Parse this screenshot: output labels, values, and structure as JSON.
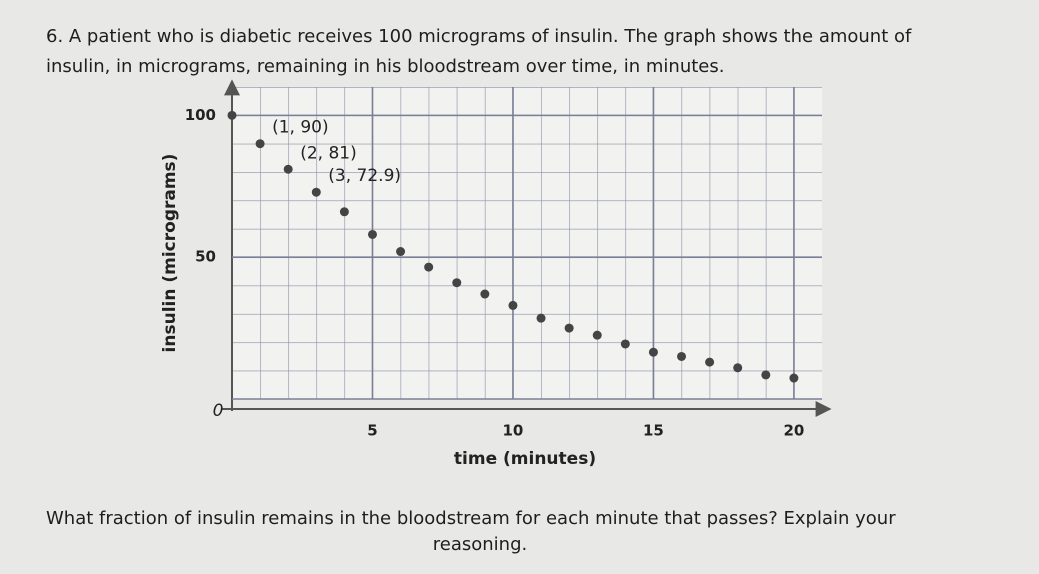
{
  "question": [
    "6. A patient who is diabetic receives 100 micrograms of insulin. The graph shows the amount of",
    "insulin, in micrograms, remaining in his bloodstream over time, in minutes."
  ],
  "chart_data": {
    "type": "scatter",
    "xlabel": "time (minutes)",
    "ylabel": "insulin (micrograms)",
    "x": [
      0,
      1,
      2,
      3,
      4,
      5,
      6,
      7,
      8,
      9,
      10,
      11,
      12,
      13,
      14,
      15,
      16,
      17,
      18,
      19,
      20
    ],
    "y": [
      100,
      90,
      81,
      72.9,
      66,
      58,
      52,
      46.5,
      41,
      37,
      33,
      28.5,
      25,
      22.5,
      19.4,
      16.5,
      15,
      13,
      11,
      8.5,
      7.4
    ],
    "color": "#444444",
    "xlim": [
      0,
      21
    ],
    "ylim": [
      0,
      110
    ],
    "xticks": [
      5,
      10,
      15,
      20
    ],
    "yticks": [
      0,
      50,
      100
    ],
    "grid": true,
    "annotations": [
      "(1, 90)",
      "(2, 81)",
      "(3, 72.9)"
    ]
  },
  "prompt": [
    "What fraction of insulin remains in the bloodstream for each minute that passes? Explain your",
    "reasoning."
  ]
}
